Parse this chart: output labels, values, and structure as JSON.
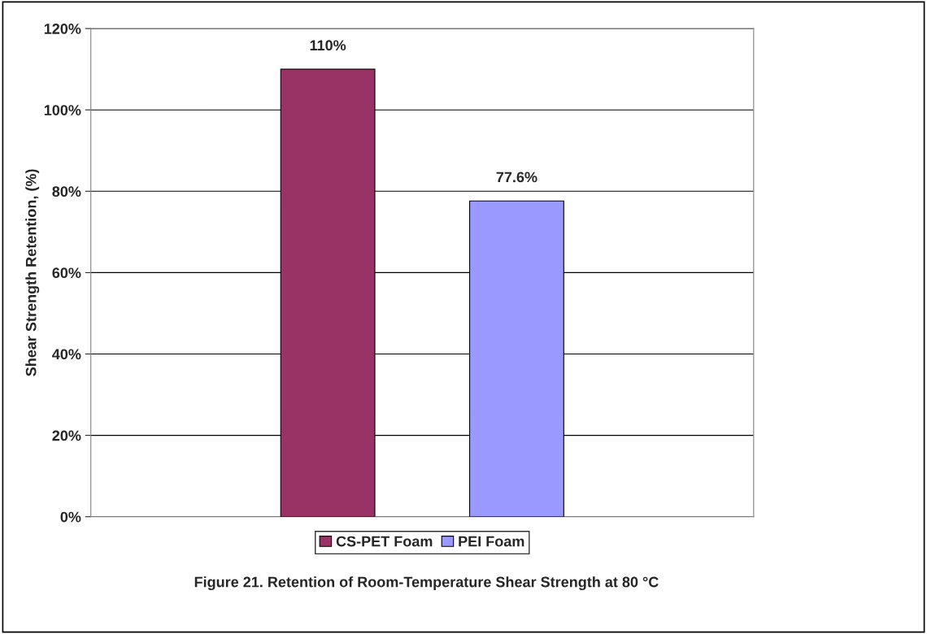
{
  "chart_data": {
    "type": "bar",
    "categories": [
      null
    ],
    "series": [
      {
        "name": "CS-PET Foam",
        "color": "#993366",
        "values": [
          110
        ],
        "value_labels": [
          "110%"
        ]
      },
      {
        "name": "PEI Foam",
        "color": "#9999ff",
        "values": [
          77.6
        ],
        "value_labels": [
          "77.6%"
        ]
      }
    ],
    "ylabel": "Shear Strength Retention, (%)",
    "ylim": [
      0,
      120
    ],
    "yticks": [
      {
        "value": 0,
        "label": "0%"
      },
      {
        "value": 20,
        "label": "20%"
      },
      {
        "value": 40,
        "label": "40%"
      },
      {
        "value": 60,
        "label": "60%"
      },
      {
        "value": 80,
        "label": "80%"
      },
      {
        "value": 100,
        "label": "100%"
      },
      {
        "value": 120,
        "label": "120%"
      }
    ],
    "grid": "y",
    "legend": "bottom",
    "annotations": [
      "Figure 21. Retention of Room-Temperature Shear Strength at 80 °C"
    ]
  }
}
